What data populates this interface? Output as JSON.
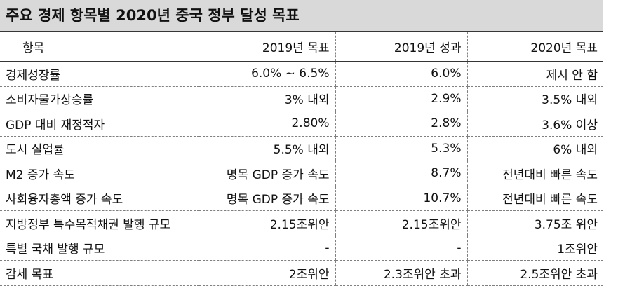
{
  "title": "주요 경제 항목별 2020년 중국 정부 달성 목표",
  "table": {
    "header": [
      "항목",
      "2019년 목표",
      "2019년 성과",
      "2020년 목표"
    ],
    "rows": [
      [
        "경제성장률",
        "6.0% ~ 6.5%",
        "6.0%",
        "제시 안 함"
      ],
      [
        "소비자물가상승률",
        "3% 내외",
        "2.9%",
        "3.5% 내외"
      ],
      [
        "GDP 대비 재정적자",
        "2.80%",
        "2.8%",
        "3.6% 이상"
      ],
      [
        "도시 실업률",
        "5.5% 내외",
        "5.3%",
        "6% 내외"
      ],
      [
        "M2 증가 속도",
        "명목 GDP 증가 속도",
        "8.7%",
        "전년대비 빠른 속도"
      ],
      [
        "사회융자총액 증가 속도",
        "명목 GDP 증가 속도",
        "10.7%",
        "전년대비 빠른 속도"
      ],
      [
        "지방정부 특수목적채권 발행 규모",
        "2.15조위안",
        "2.15조위안",
        "3.75조 위안"
      ],
      [
        "특별 국채 발행 규모",
        "-",
        "-",
        "1조위안"
      ],
      [
        "감세 목표",
        "2조위안",
        "2.3조위안 초과",
        "2.5조위안 초과"
      ]
    ]
  }
}
